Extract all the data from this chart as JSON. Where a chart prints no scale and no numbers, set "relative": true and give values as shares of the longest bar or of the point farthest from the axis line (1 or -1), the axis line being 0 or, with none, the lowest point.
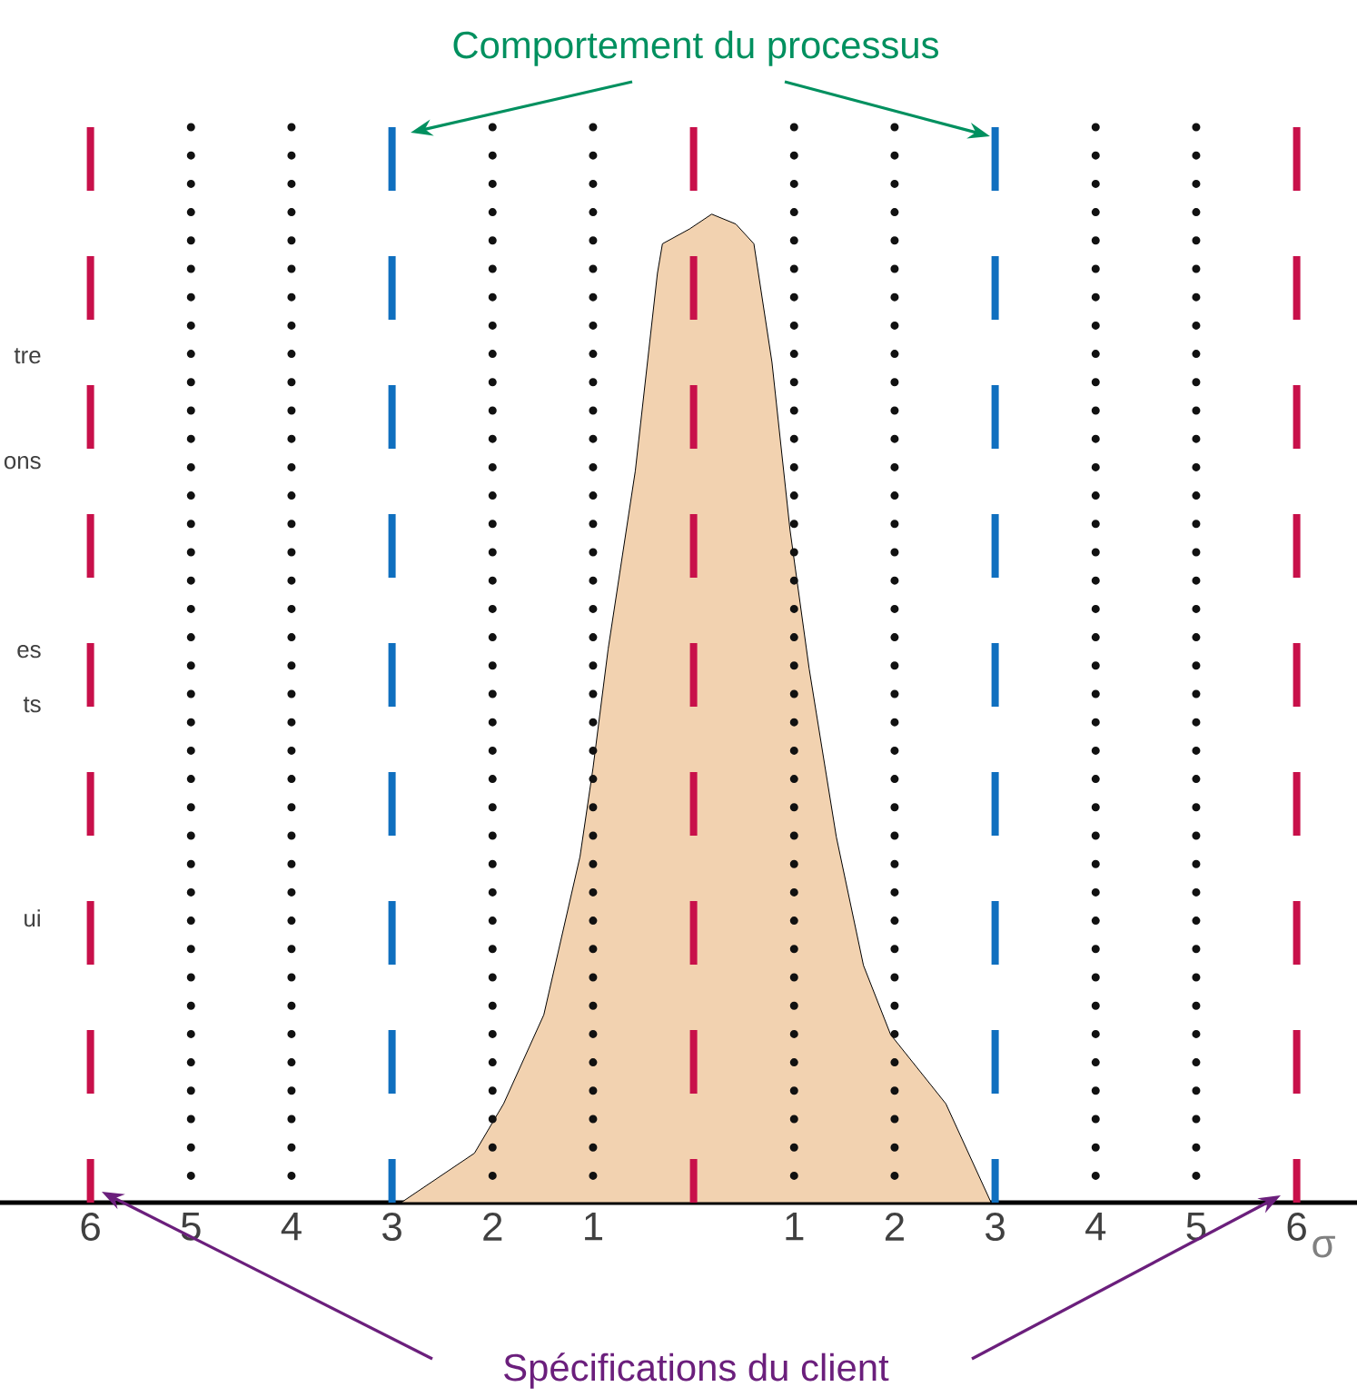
{
  "chart_data": {
    "type": "area",
    "relative": true,
    "title": "Comportement du processus",
    "xlabel": "σ",
    "annotations": [
      "Spécifications du client",
      "tre",
      "ons",
      "es",
      "ts",
      "ui"
    ],
    "xlim": [
      -6.9,
      6.6
    ],
    "xticks": [
      {
        "value": -6,
        "label": "6"
      },
      {
        "value": -5,
        "label": "5"
      },
      {
        "value": -4,
        "label": "4"
      },
      {
        "value": -3,
        "label": "3"
      },
      {
        "value": -2,
        "label": "2"
      },
      {
        "value": -1,
        "label": "1"
      },
      {
        "value": 1,
        "label": "1"
      },
      {
        "value": 2,
        "label": "2"
      },
      {
        "value": 3,
        "label": "3"
      },
      {
        "value": 4,
        "label": "4"
      },
      {
        "value": 5,
        "label": "5"
      },
      {
        "value": 6,
        "label": "6"
      }
    ],
    "series": [
      {
        "color": "#f2d2b0",
        "x": [
          -2.91,
          -2.18,
          -1.89,
          -1.49,
          -1.13,
          -1.0,
          -0.85,
          -0.58,
          -0.36,
          -0.31,
          -0.04,
          0.18,
          0.42,
          0.6,
          0.78,
          0.96,
          1.15,
          1.42,
          1.69,
          1.96,
          2.51,
          2.96
        ],
        "values": [
          0,
          0.05,
          0.1,
          0.19,
          0.35,
          0.44,
          0.56,
          0.74,
          0.94,
          0.97,
          0.985,
          1,
          0.99,
          0.97,
          0.85,
          0.68,
          0.54,
          0.37,
          0.24,
          0.17,
          0.1,
          0
        ]
      }
    ],
    "ref_lines": [
      {
        "axis": "x",
        "value": -6,
        "color": "#c8104a",
        "line_style": "dashed"
      },
      {
        "axis": "x",
        "value": -5,
        "color": "#111111",
        "line_style": "dotted"
      },
      {
        "axis": "x",
        "value": -4,
        "color": "#111111",
        "line_style": "dotted"
      },
      {
        "axis": "x",
        "value": -3,
        "color": "#0f6fbf",
        "line_style": "dashed"
      },
      {
        "axis": "x",
        "value": -2,
        "color": "#111111",
        "line_style": "dotted"
      },
      {
        "axis": "x",
        "value": -1,
        "color": "#111111",
        "line_style": "dotted"
      },
      {
        "axis": "x",
        "value": 0,
        "color": "#c8104a",
        "line_style": "dashed"
      },
      {
        "axis": "x",
        "value": 1,
        "color": "#111111",
        "line_style": "dotted"
      },
      {
        "axis": "x",
        "value": 2,
        "color": "#111111",
        "line_style": "dotted"
      },
      {
        "axis": "x",
        "value": 3,
        "color": "#0f6fbf",
        "line_style": "dashed"
      },
      {
        "axis": "x",
        "value": 4,
        "color": "#111111",
        "line_style": "dotted"
      },
      {
        "axis": "x",
        "value": 5,
        "color": "#111111",
        "line_style": "dotted"
      },
      {
        "axis": "x",
        "value": 6,
        "color": "#c8104a",
        "line_style": "dashed"
      }
    ]
  }
}
